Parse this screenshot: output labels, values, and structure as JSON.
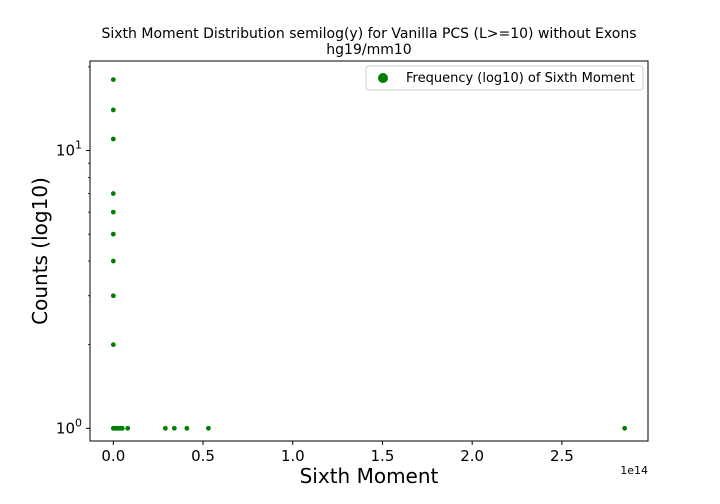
{
  "chart_data": {
    "type": "scatter",
    "title": "Sixth Moment Distribution semilog(y) for Vanilla PCS (L>=10) without Exons",
    "subtitle": "hg19/mm10",
    "xlabel": "Sixth Moment",
    "ylabel": "Counts (log10)",
    "x_scale": "linear",
    "y_scale": "log",
    "x_offset_label": "1e14",
    "xlim": [
      -0.13,
      2.98
    ],
    "ylim": [
      0.9,
      21
    ],
    "x_ticks": [
      {
        "value": 0.0,
        "label": "0.0"
      },
      {
        "value": 0.5,
        "label": "0.5"
      },
      {
        "value": 1.0,
        "label": "1.0"
      },
      {
        "value": 1.5,
        "label": "1.5"
      },
      {
        "value": 2.0,
        "label": "2.0"
      },
      {
        "value": 2.5,
        "label": "2.5"
      }
    ],
    "y_ticks": [
      {
        "value": 1,
        "base": "10",
        "exp": "0"
      },
      {
        "value": 10,
        "base": "10",
        "exp": "1"
      }
    ],
    "legend": {
      "placement": "top-right",
      "entries": [
        "Frequency (log10) of Sixth Moment"
      ]
    },
    "grid": false,
    "color": "#008000",
    "series": [
      {
        "name": "Frequency (log10) of Sixth Moment",
        "points": [
          {
            "x": 0.0,
            "y": 18
          },
          {
            "x": 0.0,
            "y": 14
          },
          {
            "x": 0.0,
            "y": 11
          },
          {
            "x": 0.0,
            "y": 7
          },
          {
            "x": 0.0,
            "y": 6
          },
          {
            "x": 0.0,
            "y": 5
          },
          {
            "x": 0.0,
            "y": 4
          },
          {
            "x": 0.0,
            "y": 3
          },
          {
            "x": 0.0,
            "y": 2
          },
          {
            "x": 0.0,
            "y": 1
          },
          {
            "x": 0.01,
            "y": 1
          },
          {
            "x": 0.02,
            "y": 1
          },
          {
            "x": 0.03,
            "y": 1
          },
          {
            "x": 0.04,
            "y": 1
          },
          {
            "x": 0.05,
            "y": 1
          },
          {
            "x": 0.08,
            "y": 1
          },
          {
            "x": 0.29,
            "y": 1
          },
          {
            "x": 0.34,
            "y": 1
          },
          {
            "x": 0.41,
            "y": 1
          },
          {
            "x": 0.53,
            "y": 1
          },
          {
            "x": 2.85,
            "y": 1
          }
        ]
      }
    ]
  }
}
